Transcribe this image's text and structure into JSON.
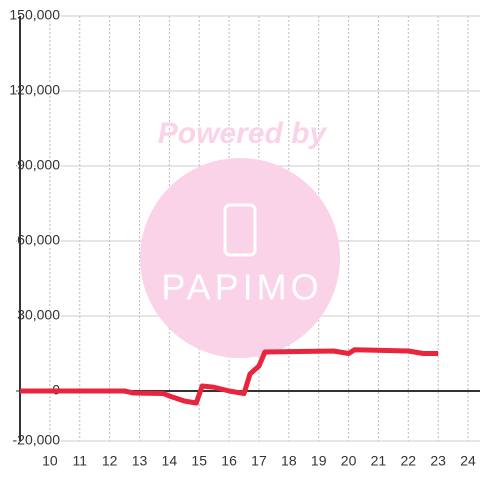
{
  "chart_data": {
    "type": "line",
    "watermark": [
      "Powered by",
      "PAPIMO"
    ],
    "x": [
      9,
      12.5,
      12.8,
      13.8,
      14,
      14.5,
      14.9,
      15.1,
      15.5,
      16,
      16.5,
      16.7,
      17,
      17.2,
      19.5,
      20,
      20.2,
      22,
      22.5,
      23
    ],
    "series": [
      {
        "color": "#e8253d",
        "values": [
          0,
          0,
          -800,
          -1000,
          -2000,
          -4000,
          -4800,
          2000,
          1500,
          0,
          -1000,
          6800,
          10000,
          15600,
          16000,
          15000,
          16500,
          16000,
          15000,
          15000
        ]
      }
    ],
    "xlim": [
      9,
      24.4
    ],
    "xticks": [
      10,
      11,
      12,
      13,
      14,
      15,
      16,
      17,
      18,
      19,
      20,
      21,
      22,
      23,
      24
    ],
    "ylim": [
      -20000,
      150000
    ],
    "yticks": [
      {
        "value": -20000,
        "label": "-20,000"
      },
      0,
      {
        "value": 30000,
        "label": "30,000"
      },
      {
        "value": 60000,
        "label": "60,000"
      },
      {
        "value": 90000,
        "label": "90,000"
      },
      {
        "value": 120000,
        "label": "120,000"
      },
      {
        "value": 150000,
        "label": "150,000"
      }
    ],
    "grid": true
  }
}
